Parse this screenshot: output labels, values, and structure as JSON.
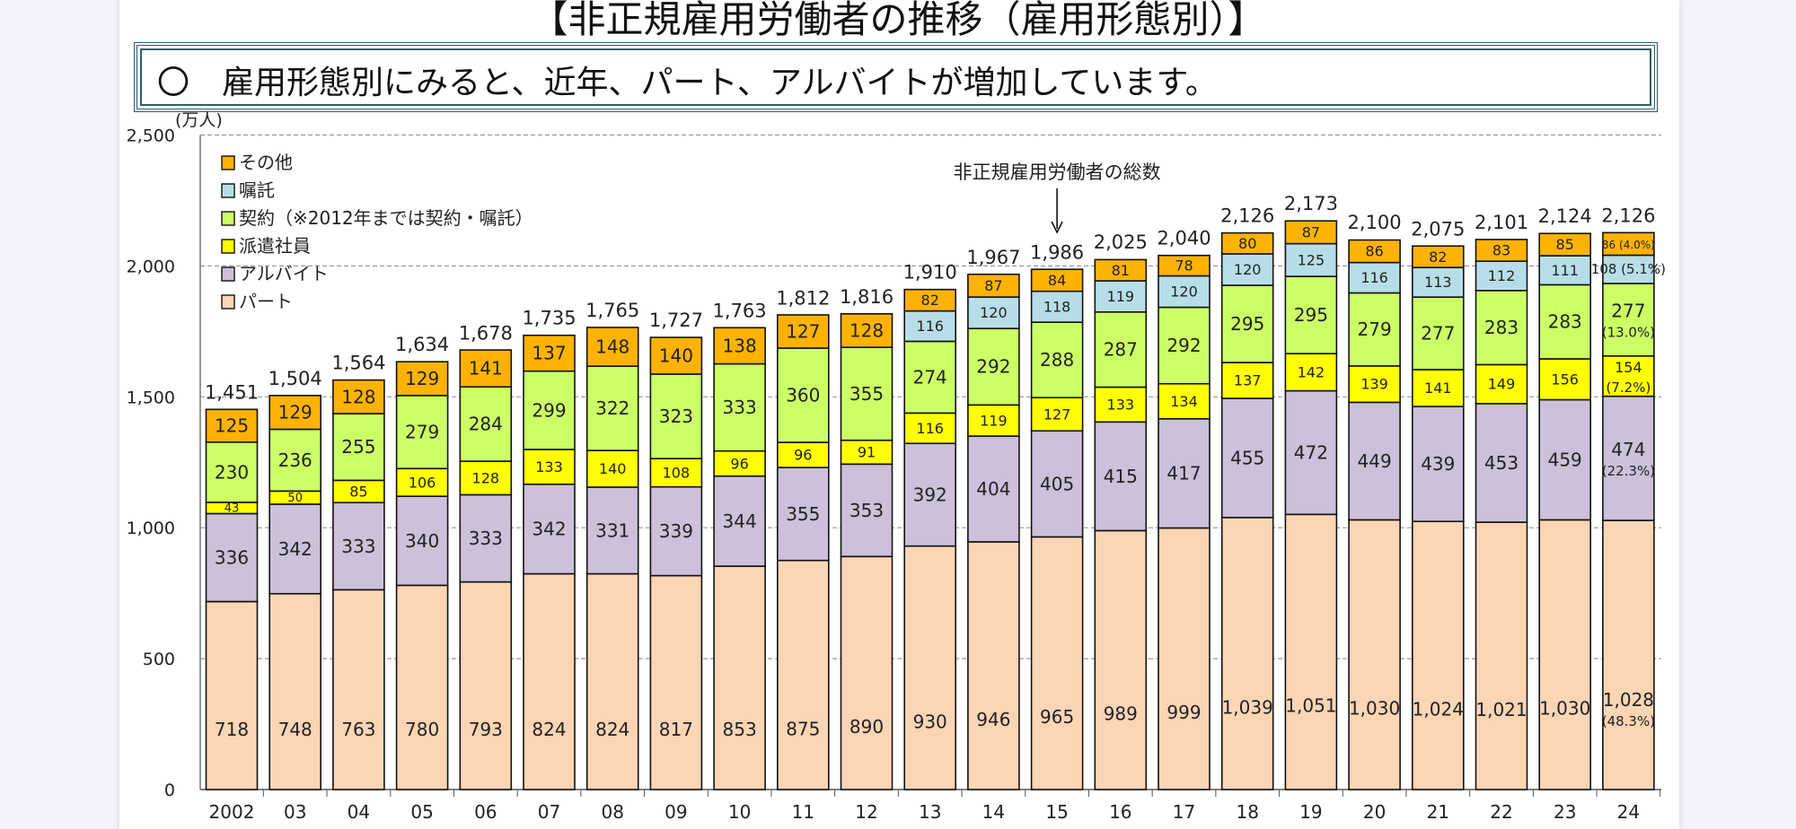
{
  "header": {
    "title": "【非正規雇用労働者の推移（雇用形態別）】",
    "summary": "〇　雇用形態別にみると、近年、パート、アルバイトが増加しています。"
  },
  "chart_data": {
    "type": "bar",
    "stacked": true,
    "unit_label": "(万人)",
    "annotation": "非正規雇用労働者の総数",
    "annotation_target": "15",
    "ylim": [
      0,
      2500
    ],
    "yticks": [
      0,
      500,
      1000,
      1500,
      2000,
      2500
    ],
    "ytick_labels": [
      "0",
      "500",
      "1,000",
      "1,500",
      "2,000",
      "2,500"
    ],
    "grid": true,
    "legend_placement": "top-left",
    "categories": [
      "2002",
      "03",
      "04",
      "05",
      "06",
      "07",
      "08",
      "09",
      "10",
      "11",
      "12",
      "13",
      "14",
      "15",
      "16",
      "17",
      "18",
      "19",
      "20",
      "21",
      "22",
      "23",
      "24"
    ],
    "series": [
      {
        "name": "パート",
        "color": "#fcd5b5",
        "values": [
          718,
          748,
          763,
          780,
          793,
          824,
          824,
          817,
          853,
          875,
          890,
          930,
          946,
          965,
          989,
          999,
          1039,
          1051,
          1030,
          1024,
          1021,
          1030,
          1028
        ]
      },
      {
        "name": "アルバイト",
        "color": "#ccc0da",
        "values": [
          336,
          342,
          333,
          340,
          333,
          342,
          331,
          339,
          344,
          355,
          353,
          392,
          404,
          405,
          415,
          417,
          455,
          472,
          449,
          439,
          453,
          459,
          474
        ]
      },
      {
        "name": "派遣社員",
        "color": "#ffff00",
        "values": [
          43,
          50,
          85,
          106,
          128,
          133,
          140,
          108,
          96,
          96,
          91,
          116,
          119,
          127,
          133,
          134,
          137,
          142,
          139,
          141,
          149,
          156,
          154
        ]
      },
      {
        "name": "契約（※2012年までは契約・嘱託）",
        "color": "#ccff66",
        "values": [
          230,
          236,
          255,
          279,
          284,
          299,
          322,
          323,
          333,
          360,
          355,
          274,
          292,
          288,
          287,
          292,
          295,
          295,
          279,
          277,
          283,
          283,
          277
        ]
      },
      {
        "name": "嘱託",
        "color": "#b7dee8",
        "values": [
          null,
          null,
          null,
          null,
          null,
          null,
          null,
          null,
          null,
          null,
          null,
          116,
          120,
          118,
          119,
          120,
          120,
          125,
          116,
          113,
          112,
          111,
          108
        ]
      },
      {
        "name": "その他",
        "color": "#ffb300",
        "values": [
          125,
          129,
          128,
          129,
          141,
          137,
          148,
          140,
          138,
          127,
          128,
          82,
          87,
          84,
          81,
          78,
          80,
          87,
          86,
          82,
          83,
          85,
          86
        ]
      }
    ],
    "totals": [
      1451,
      1504,
      1564,
      1634,
      1678,
      1735,
      1765,
      1727,
      1763,
      1812,
      1816,
      1910,
      1967,
      1986,
      2025,
      2040,
      2126,
      2173,
      2100,
      2075,
      2101,
      2124,
      2126
    ],
    "last_year_shares_pct": [
      "48.3%",
      "22.3%",
      "7.2%",
      "13.0%",
      "5.1%",
      "4.0%"
    ]
  }
}
